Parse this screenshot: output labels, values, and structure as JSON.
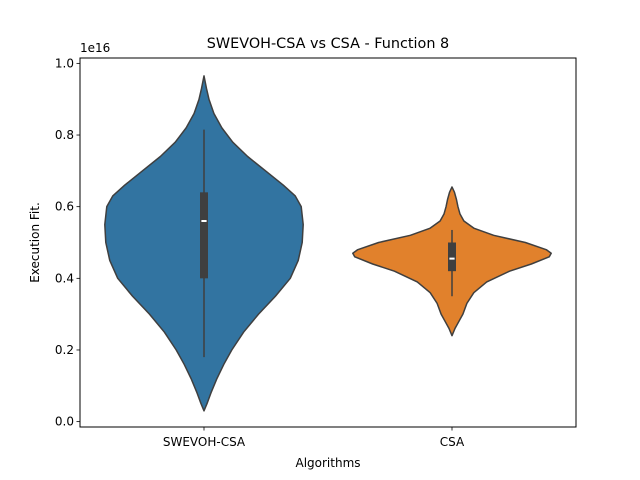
{
  "chart_data": {
    "type": "violin",
    "title": "SWEVOH-CSA vs CSA - Function 8",
    "xlabel": "Algorithms",
    "ylabel": "Execution Fit.",
    "offset_label": "1e16",
    "y_scale_factor": 1e+16,
    "ylim": [
      -0.015,
      1.015
    ],
    "yticks": [
      0.0,
      0.2,
      0.4,
      0.6,
      0.8,
      1.0
    ],
    "ytick_labels": [
      "0.0",
      "0.2",
      "0.4",
      "0.6",
      "0.8",
      "1.0"
    ],
    "categories": [
      "SWEVOH-CSA",
      "CSA"
    ],
    "series": [
      {
        "category": "SWEVOH-CSA",
        "color": "#3274a1",
        "min": 0.18,
        "q1": 0.4,
        "median": 0.56,
        "q3": 0.64,
        "max": 0.815,
        "kde_range": [
          0.03,
          0.965
        ],
        "density_profile": [
          [
            0.03,
            0.0
          ],
          [
            0.05,
            0.03
          ],
          [
            0.08,
            0.07
          ],
          [
            0.12,
            0.13
          ],
          [
            0.16,
            0.2
          ],
          [
            0.2,
            0.28
          ],
          [
            0.25,
            0.4
          ],
          [
            0.3,
            0.55
          ],
          [
            0.35,
            0.72
          ],
          [
            0.4,
            0.87
          ],
          [
            0.45,
            0.95
          ],
          [
            0.5,
            0.99
          ],
          [
            0.55,
            1.0
          ],
          [
            0.6,
            0.98
          ],
          [
            0.63,
            0.92
          ],
          [
            0.66,
            0.8
          ],
          [
            0.7,
            0.62
          ],
          [
            0.74,
            0.44
          ],
          [
            0.78,
            0.29
          ],
          [
            0.82,
            0.18
          ],
          [
            0.86,
            0.1
          ],
          [
            0.9,
            0.05
          ],
          [
            0.93,
            0.025
          ],
          [
            0.965,
            0.0
          ]
        ]
      },
      {
        "category": "CSA",
        "color": "#e1812c",
        "min": 0.35,
        "q1": 0.42,
        "median": 0.455,
        "q3": 0.5,
        "max": 0.535,
        "kde_range": [
          0.24,
          0.655
        ],
        "density_profile": [
          [
            0.24,
            0.0
          ],
          [
            0.26,
            0.03
          ],
          [
            0.28,
            0.07
          ],
          [
            0.3,
            0.11
          ],
          [
            0.33,
            0.15
          ],
          [
            0.36,
            0.22
          ],
          [
            0.39,
            0.35
          ],
          [
            0.42,
            0.58
          ],
          [
            0.44,
            0.8
          ],
          [
            0.46,
            0.98
          ],
          [
            0.47,
            1.0
          ],
          [
            0.48,
            0.95
          ],
          [
            0.5,
            0.74
          ],
          [
            0.52,
            0.42
          ],
          [
            0.54,
            0.22
          ],
          [
            0.56,
            0.12
          ],
          [
            0.58,
            0.08
          ],
          [
            0.6,
            0.06
          ],
          [
            0.62,
            0.045
          ],
          [
            0.64,
            0.025
          ],
          [
            0.655,
            0.0
          ]
        ]
      }
    ]
  }
}
